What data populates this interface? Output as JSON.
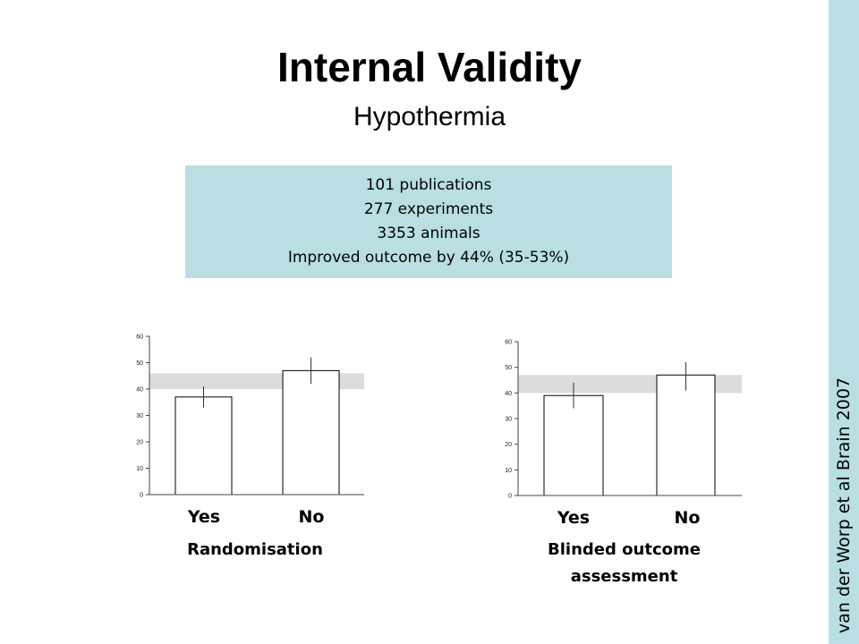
{
  "slide": {
    "title": "Internal Validity",
    "subtitle": "Hypothermia",
    "citation": "van der Worp et al Brain 2007"
  },
  "summary_box": {
    "lines": [
      "101 publications",
      "277 experiments",
      "3353 animals",
      "Improved outcome by 44% (35-53%)"
    ]
  },
  "colors": {
    "accent": "#b9dfe2",
    "band": "#dcdcdc",
    "bar_fill": "#ffffff",
    "bar_stroke": "#000000"
  },
  "chart_data": [
    {
      "type": "bar",
      "caption": "Randomisation",
      "categories": [
        "Yes",
        "No"
      ],
      "values": [
        37,
        47
      ],
      "error_low": [
        33,
        42
      ],
      "error_high": [
        41,
        52
      ],
      "band": [
        40,
        46
      ],
      "ylim": [
        0,
        60
      ],
      "yticks": [
        0,
        10,
        20,
        30,
        40,
        50,
        60
      ]
    },
    {
      "type": "bar",
      "caption": "Blinded outcome assessment",
      "categories": [
        "Yes",
        "No"
      ],
      "values": [
        39,
        47
      ],
      "error_low": [
        34,
        41
      ],
      "error_high": [
        44,
        52
      ],
      "band": [
        40,
        47
      ],
      "ylim": [
        0,
        60
      ],
      "yticks": [
        0,
        10,
        20,
        30,
        40,
        50,
        60
      ]
    }
  ]
}
